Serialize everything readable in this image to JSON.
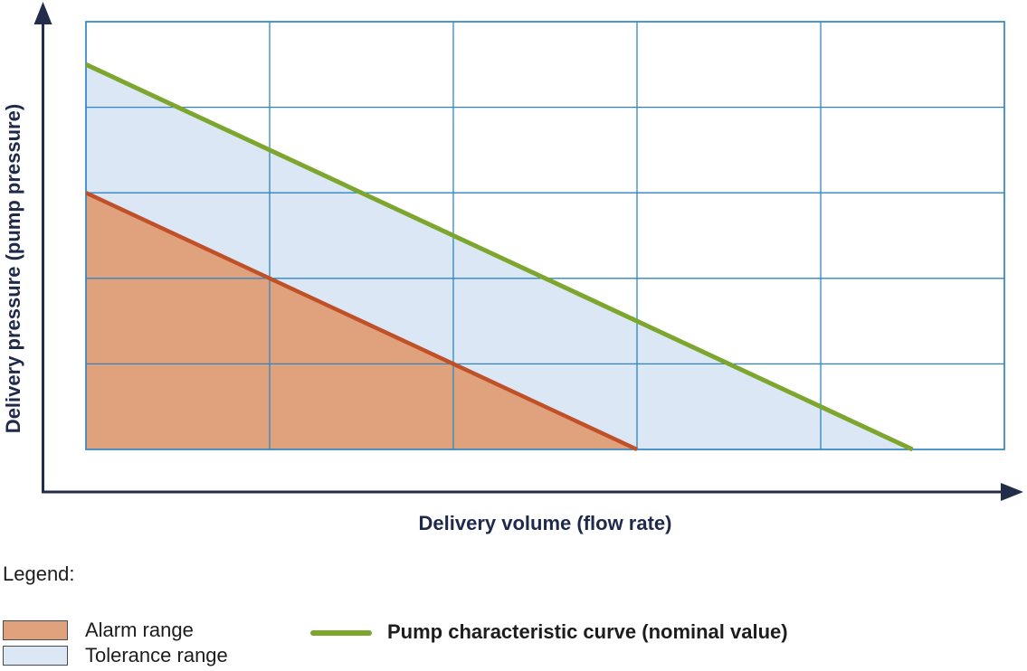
{
  "chart_data": {
    "type": "area",
    "xlabel": "Delivery volume (flow rate)",
    "ylabel": "Delivery pressure (pump pressure)",
    "x_range": [
      0,
      5
    ],
    "y_range": [
      0,
      5
    ],
    "grid": "on",
    "grid_divisions": {
      "cols": 5,
      "rows": 5
    },
    "grid_color": "#2e85c2",
    "axis_color": "#232d49",
    "series": [
      {
        "id": "tolerance-range",
        "name": "Tolerance range",
        "kind": "area",
        "fill": "#dce7f5",
        "points": [
          [
            0,
            4.5
          ],
          [
            4.5,
            0
          ],
          [
            0,
            0
          ]
        ]
      },
      {
        "id": "alarm-range",
        "name": "Alarm range",
        "kind": "area",
        "fill": "#e0a27d",
        "points": [
          [
            0,
            3
          ],
          [
            3,
            0
          ],
          [
            0,
            0
          ]
        ]
      },
      {
        "id": "alarm-boundary",
        "name": "Alarm range boundary",
        "kind": "line",
        "color": "#c05028",
        "width": 4.5,
        "points": [
          [
            0,
            3
          ],
          [
            3,
            0
          ]
        ]
      },
      {
        "id": "nominal-curve",
        "name": "Pump characteristic curve (nominal value)",
        "kind": "line",
        "color": "#7ca62e",
        "width": 5,
        "points": [
          [
            0,
            4.5
          ],
          [
            4.5,
            0
          ]
        ]
      }
    ]
  },
  "legend": {
    "title": "Legend:",
    "items": [
      {
        "label": "Alarm range",
        "swatch": "area",
        "fill": "#e0a27d"
      },
      {
        "label": "Tolerance range",
        "swatch": "area",
        "fill": "#dce7f5"
      },
      {
        "label": "Pump characteristic curve (nominal value)",
        "swatch": "line",
        "color": "#7ca62e"
      }
    ]
  }
}
